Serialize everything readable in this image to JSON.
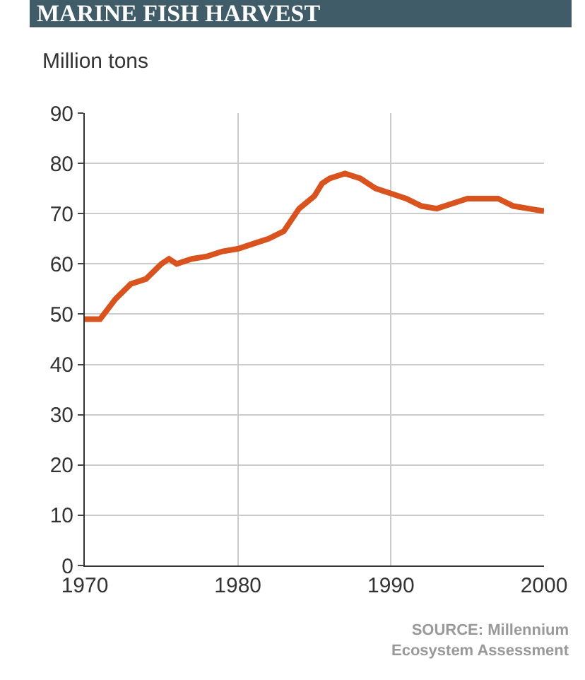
{
  "chart_data": {
    "type": "line",
    "title": "MARINE FISH HARVEST",
    "ylabel": "Million tons",
    "x": [
      1970,
      1971,
      1972,
      1973,
      1974,
      1975,
      1975.5,
      1976,
      1977,
      1978,
      1979,
      1980,
      1981,
      1982,
      1983,
      1984,
      1985,
      1985.5,
      1986,
      1987,
      1988,
      1989,
      1990,
      1991,
      1992,
      1993,
      1994,
      1995,
      1996,
      1997,
      1998,
      1999,
      2000
    ],
    "series": [
      {
        "color": "#d9531e",
        "values": [
          49,
          49,
          53,
          56,
          57,
          60,
          61,
          60,
          61,
          61.5,
          62.5,
          63,
          64,
          65,
          66.5,
          71,
          73.5,
          76,
          77,
          78,
          77,
          75,
          74,
          73,
          71.5,
          71,
          72,
          73,
          73,
          73,
          71.5,
          71,
          70.5
        ]
      }
    ],
    "xlim": [
      1970,
      2000
    ],
    "xticks": [
      1970,
      1980,
      1990,
      2000
    ],
    "ylim": [
      0,
      90
    ],
    "yticks": [
      0,
      10,
      20,
      30,
      40,
      50,
      60,
      70,
      80,
      90
    ],
    "grid": true,
    "legend": false,
    "marker": "none",
    "line_style": "solid",
    "annotations": [
      "SOURCE: Millennium\nEcosystem Assessment"
    ]
  }
}
